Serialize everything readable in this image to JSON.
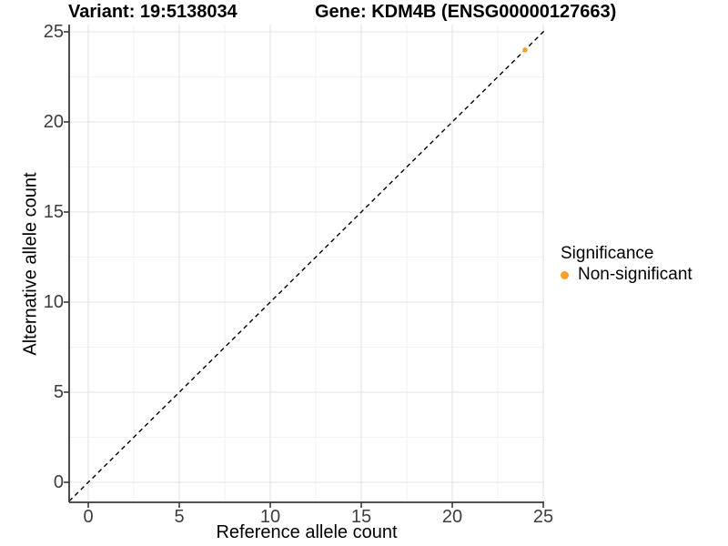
{
  "title": {
    "variant": "Variant: 19:5138034",
    "gene": "Gene: KDM4B (ENSG00000127663)"
  },
  "axes": {
    "x_label": "Reference allele count",
    "y_label": "Alternative allele count"
  },
  "legend": {
    "title": "Significance",
    "entries": [
      {
        "label": "Non-significant",
        "color": "#F9A029"
      }
    ]
  },
  "colors": {
    "point": "#F9A029",
    "axis_line": "#3a3a3a",
    "tick_mark": "#3a3a3a",
    "grid_major": "#e4e4e4",
    "grid_minor": "#f2f2f2",
    "reference_line": "#000000",
    "tick_text": "#3d3d3d",
    "background": "#ffffff"
  },
  "chart_data": {
    "type": "scatter",
    "title": "Variant: 19:5138034    Gene: KDM4B (ENSG00000127663)",
    "xlabel": "Reference allele count",
    "ylabel": "Alternative allele count",
    "x_ticks": [
      0,
      5,
      10,
      15,
      20,
      25
    ],
    "y_ticks": [
      0,
      5,
      10,
      15,
      20,
      25
    ],
    "x_minor_ticks": [
      2.5,
      7.5,
      12.5,
      17.5,
      22.5
    ],
    "y_minor_ticks": [
      2.5,
      7.5,
      12.5,
      17.5,
      22.5
    ],
    "xlim": [
      -1.05,
      25.05
    ],
    "ylim": [
      -1.1,
      25.4
    ],
    "grid": "major+minor",
    "legend_position": "right",
    "reference_line": {
      "slope": 1,
      "intercept": 0,
      "style": "dashed"
    },
    "series": [
      {
        "name": "Non-significant",
        "color": "#F9A029",
        "points": [
          [
            24,
            24
          ]
        ]
      }
    ]
  }
}
